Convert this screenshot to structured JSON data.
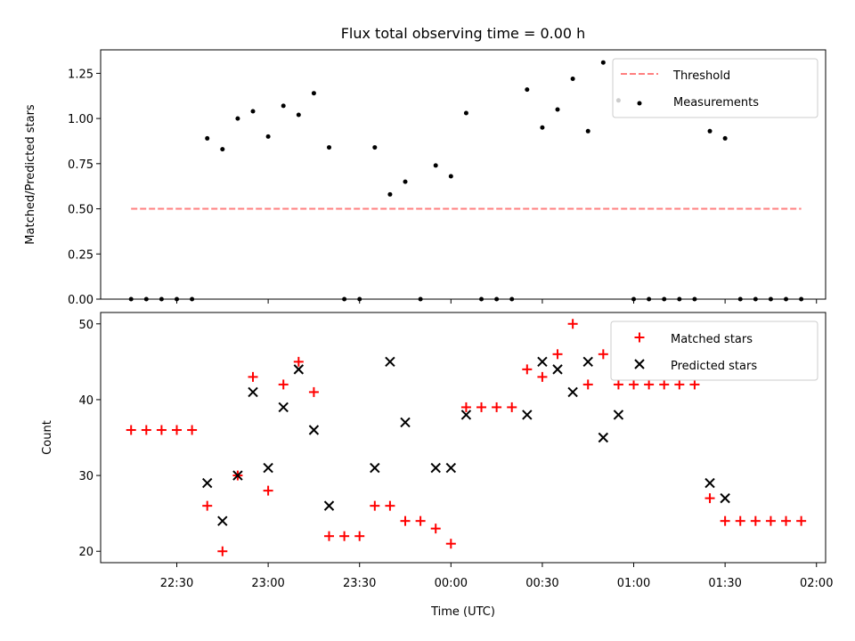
{
  "figure": {
    "title": "Flux total observing time = 0.00 h",
    "xlabel": "Time (UTC)"
  },
  "chart_data": [
    {
      "type": "scatter",
      "ylabel": "Matched/Predicted stars",
      "xlim": [
        "22:05",
        "02:03"
      ],
      "ylim": [
        0,
        1.38
      ],
      "x_ticks": [
        "22:30",
        "23:00",
        "23:30",
        "00:00",
        "00:30",
        "01:00",
        "01:30",
        "02:00"
      ],
      "y_ticks": [
        "0.00",
        "0.25",
        "0.50",
        "0.75",
        "1.00",
        "1.25"
      ],
      "legend_position": "upper right",
      "threshold": {
        "name": "Threshold",
        "value": 0.5,
        "color": "#ff7f7f",
        "x_range": [
          "22:15",
          "01:55"
        ]
      },
      "series": [
        {
          "name": "Measurements",
          "color": "#000000",
          "marker": "dot",
          "points": [
            [
              "22:15",
              0
            ],
            [
              "22:20",
              0
            ],
            [
              "22:25",
              0
            ],
            [
              "22:30",
              0
            ],
            [
              "22:35",
              0
            ],
            [
              "22:40",
              0.89
            ],
            [
              "22:45",
              0.83
            ],
            [
              "22:50",
              1.0
            ],
            [
              "22:55",
              1.04
            ],
            [
              "23:00",
              0.9
            ],
            [
              "23:05",
              1.07
            ],
            [
              "23:10",
              1.02
            ],
            [
              "23:15",
              1.14
            ],
            [
              "23:20",
              0.84
            ],
            [
              "23:25",
              0
            ],
            [
              "23:30",
              0
            ],
            [
              "23:35",
              0.84
            ],
            [
              "23:40",
              0.58
            ],
            [
              "23:45",
              0.65
            ],
            [
              "23:50",
              0
            ],
            [
              "23:55",
              0.74
            ],
            [
              "00:00",
              0.68
            ],
            [
              "00:05",
              1.03
            ],
            [
              "00:10",
              0
            ],
            [
              "00:15",
              0
            ],
            [
              "00:20",
              0
            ],
            [
              "00:25",
              1.16
            ],
            [
              "00:30",
              0.95
            ],
            [
              "00:35",
              1.05
            ],
            [
              "00:40",
              1.22
            ],
            [
              "00:45",
              0.93
            ],
            [
              "00:50",
              1.31
            ],
            [
              "00:55",
              1.1
            ],
            [
              "01:00",
              0
            ],
            [
              "01:05",
              0
            ],
            [
              "01:10",
              0
            ],
            [
              "01:15",
              0
            ],
            [
              "01:20",
              0
            ],
            [
              "01:25",
              0.93
            ],
            [
              "01:30",
              0.89
            ],
            [
              "01:35",
              0
            ],
            [
              "01:40",
              0
            ],
            [
              "01:45",
              0
            ],
            [
              "01:50",
              0
            ],
            [
              "01:55",
              0
            ]
          ]
        }
      ]
    },
    {
      "type": "scatter",
      "ylabel": "Count",
      "xlim": [
        "22:05",
        "02:03"
      ],
      "ylim": [
        18.5,
        51.5
      ],
      "x_ticks": [
        "22:30",
        "23:00",
        "23:30",
        "00:00",
        "00:30",
        "01:00",
        "01:30",
        "02:00"
      ],
      "y_ticks": [
        "20",
        "30",
        "40",
        "50"
      ],
      "legend_position": "upper right",
      "series": [
        {
          "name": "Matched stars",
          "color": "#ff0000",
          "marker": "plus",
          "points": [
            [
              "22:15",
              36
            ],
            [
              "22:20",
              36
            ],
            [
              "22:25",
              36
            ],
            [
              "22:30",
              36
            ],
            [
              "22:35",
              36
            ],
            [
              "22:40",
              26
            ],
            [
              "22:45",
              20
            ],
            [
              "22:50",
              30
            ],
            [
              "22:55",
              43
            ],
            [
              "23:00",
              28
            ],
            [
              "23:05",
              42
            ],
            [
              "23:10",
              45
            ],
            [
              "23:15",
              41
            ],
            [
              "23:20",
              22
            ],
            [
              "23:25",
              22
            ],
            [
              "23:30",
              22
            ],
            [
              "23:35",
              26
            ],
            [
              "23:40",
              26
            ],
            [
              "23:45",
              24
            ],
            [
              "23:50",
              24
            ],
            [
              "23:55",
              23
            ],
            [
              "00:00",
              21
            ],
            [
              "00:05",
              39
            ],
            [
              "00:10",
              39
            ],
            [
              "00:15",
              39
            ],
            [
              "00:20",
              39
            ],
            [
              "00:25",
              44
            ],
            [
              "00:30",
              43
            ],
            [
              "00:35",
              46
            ],
            [
              "00:40",
              50
            ],
            [
              "00:45",
              42
            ],
            [
              "00:50",
              46
            ],
            [
              "00:55",
              42
            ],
            [
              "01:00",
              42
            ],
            [
              "01:05",
              42
            ],
            [
              "01:10",
              42
            ],
            [
              "01:15",
              42
            ],
            [
              "01:20",
              42
            ],
            [
              "01:25",
              27
            ],
            [
              "01:30",
              24
            ],
            [
              "01:35",
              24
            ],
            [
              "01:40",
              24
            ],
            [
              "01:45",
              24
            ],
            [
              "01:50",
              24
            ],
            [
              "01:55",
              24
            ]
          ]
        },
        {
          "name": "Predicted stars",
          "color": "#000000",
          "marker": "x",
          "points": [
            [
              "22:40",
              29
            ],
            [
              "22:45",
              24
            ],
            [
              "22:50",
              30
            ],
            [
              "22:55",
              41
            ],
            [
              "23:00",
              31
            ],
            [
              "23:05",
              39
            ],
            [
              "23:10",
              44
            ],
            [
              "23:15",
              36
            ],
            [
              "23:20",
              26
            ],
            [
              "23:35",
              31
            ],
            [
              "23:40",
              45
            ],
            [
              "23:45",
              37
            ],
            [
              "23:55",
              31
            ],
            [
              "00:00",
              31
            ],
            [
              "00:05",
              38
            ],
            [
              "00:25",
              38
            ],
            [
              "00:30",
              45
            ],
            [
              "00:35",
              44
            ],
            [
              "00:40",
              41
            ],
            [
              "00:45",
              45
            ],
            [
              "00:50",
              35
            ],
            [
              "00:55",
              38
            ],
            [
              "01:25",
              29
            ],
            [
              "01:30",
              27
            ]
          ]
        }
      ]
    }
  ]
}
